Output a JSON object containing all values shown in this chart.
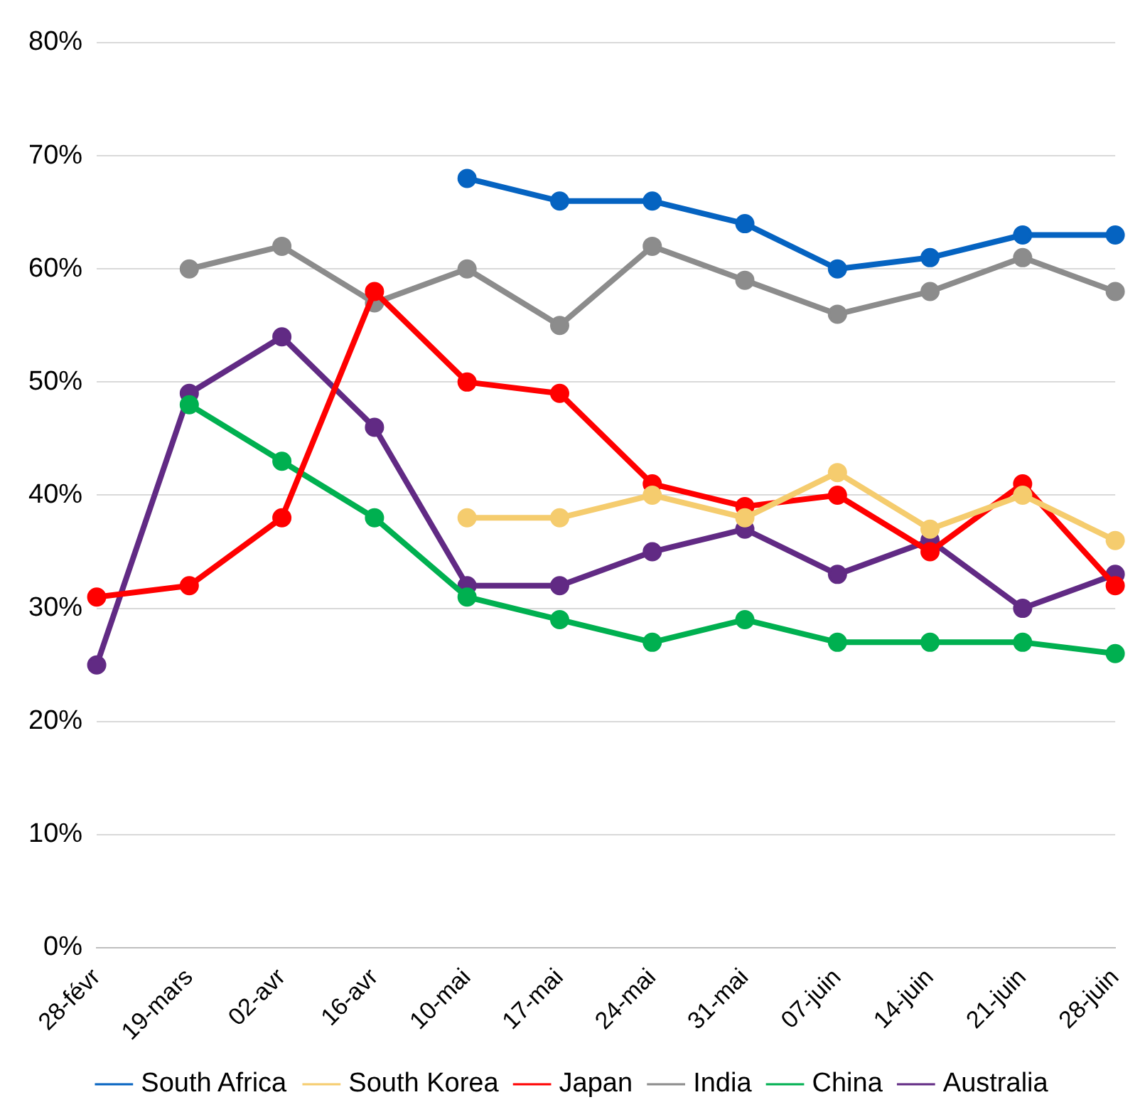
{
  "chart_data": {
    "type": "line",
    "categories": [
      "28-févr",
      "19-mars",
      "02-avr",
      "16-avr",
      "10-mai",
      "17-mai",
      "24-mai",
      "31-mai",
      "07-juin",
      "14-juin",
      "21-juin",
      "28-juin"
    ],
    "series": [
      {
        "name": "Australia",
        "color": "#612a84",
        "values": [
          25,
          49,
          54,
          46,
          32,
          32,
          35,
          37,
          33,
          36,
          30,
          33
        ]
      },
      {
        "name": "China",
        "color": "#00b050",
        "values": [
          null,
          48,
          43,
          38,
          31,
          29,
          27,
          29,
          27,
          27,
          27,
          26
        ]
      },
      {
        "name": "India",
        "color": "#8c8c8c",
        "values": [
          null,
          60,
          62,
          57,
          60,
          55,
          62,
          59,
          56,
          58,
          61,
          58
        ]
      },
      {
        "name": "Japan",
        "color": "#ff0000",
        "values": [
          31,
          32,
          38,
          58,
          50,
          49,
          41,
          39,
          40,
          35,
          41,
          32
        ]
      },
      {
        "name": "South Korea",
        "color": "#f5cc6e",
        "values": [
          null,
          null,
          null,
          null,
          38,
          38,
          40,
          38,
          42,
          37,
          40,
          36
        ]
      },
      {
        "name": "South Africa",
        "color": "#0563c1",
        "values": [
          null,
          null,
          null,
          null,
          68,
          66,
          66,
          64,
          60,
          61,
          63,
          63
        ]
      }
    ],
    "ylim": [
      0,
      80
    ],
    "yticks": [
      {
        "value": 0,
        "label": "0%"
      },
      {
        "value": 10,
        "label": "10%"
      },
      {
        "value": 20,
        "label": "20%"
      },
      {
        "value": 30,
        "label": "30%"
      },
      {
        "value": 40,
        "label": "40%"
      },
      {
        "value": 50,
        "label": "50%"
      },
      {
        "value": 60,
        "label": "60%"
      },
      {
        "value": 70,
        "label": "70%"
      },
      {
        "value": 80,
        "label": "80%"
      }
    ],
    "grid": "y",
    "legend": "bottom",
    "marker": "circle",
    "line_style": "solid"
  }
}
